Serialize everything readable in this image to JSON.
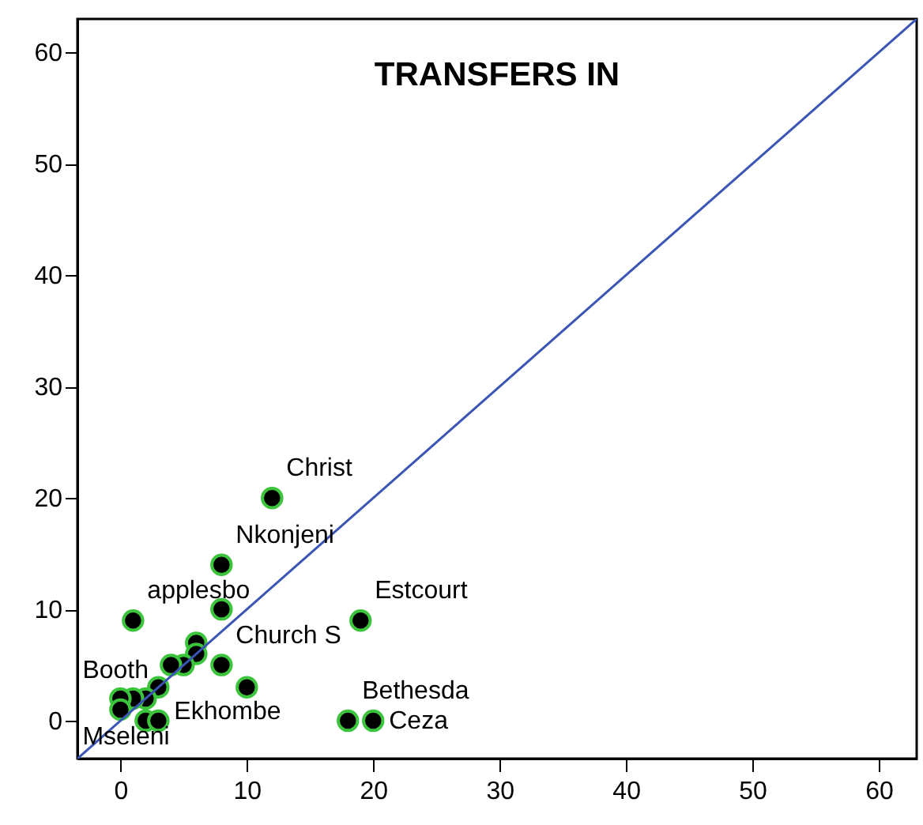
{
  "chart_data": {
    "type": "scatter",
    "title": "TRANSFERS IN",
    "xlim": [
      -3.4,
      63
    ],
    "ylim": [
      -3.4,
      63
    ],
    "xticks": [
      0,
      10,
      20,
      30,
      40,
      50,
      60
    ],
    "yticks": [
      0,
      10,
      20,
      30,
      40,
      50,
      60
    ],
    "grid": false,
    "series": [
      {
        "color": "#000000",
        "marker": "circle",
        "x": [
          12,
          8,
          8,
          1,
          19,
          6,
          6,
          5,
          4,
          8,
          10,
          3,
          2,
          1,
          0,
          0,
          2,
          3,
          18,
          20
        ],
        "values": [
          20,
          14,
          10,
          9,
          9,
          7,
          6,
          5,
          5,
          5,
          3,
          3,
          2,
          2,
          2,
          1,
          0,
          0,
          0,
          0
        ]
      },
      {
        "type": "line",
        "color": "#3a55b4",
        "x": [
          -3.4,
          63
        ],
        "values": [
          -3.4,
          63
        ]
      }
    ],
    "annotations": [
      {
        "text": "Christ",
        "x": 12,
        "y": 20
      },
      {
        "text": "Nkonjeni",
        "x": 8,
        "y": 14
      },
      {
        "text": "applesbo",
        "x": 1,
        "y": 9
      },
      {
        "text": "Estcourt",
        "x": 19,
        "y": 9
      },
      {
        "text": "Church S",
        "x": 8,
        "y": 5
      },
      {
        "text": "Booth",
        "x": 0,
        "y": 2
      },
      {
        "text": "Ekhombe",
        "x": 3,
        "y": 3
      },
      {
        "text": "Bethesda",
        "x": 18,
        "y": 0
      },
      {
        "text": "Mseleni",
        "x": 0,
        "y": 1
      },
      {
        "text": "Ceza",
        "x": 20,
        "y": 0
      }
    ]
  }
}
